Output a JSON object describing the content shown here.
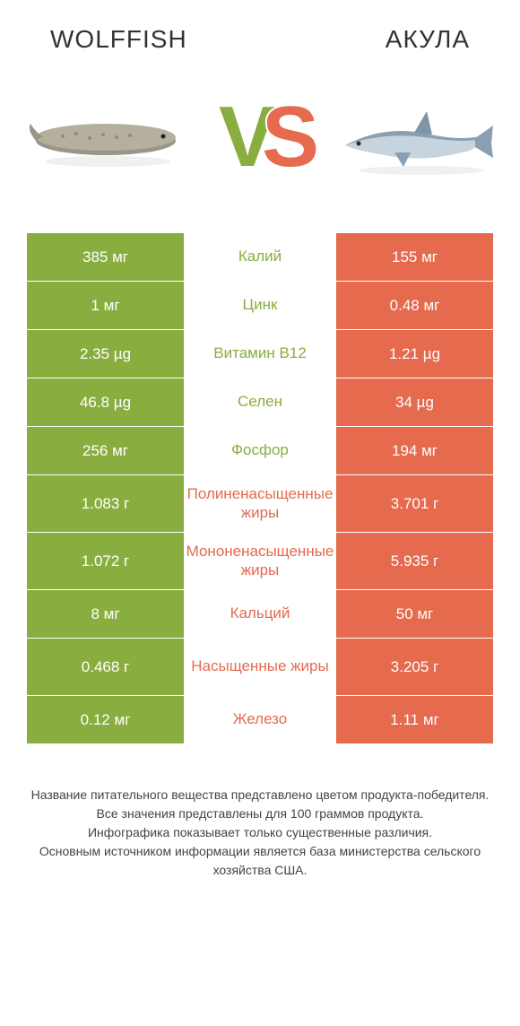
{
  "colors": {
    "green": "#8aad3f",
    "orange": "#e56a4e",
    "vs_v": "#8aad3f",
    "vs_s": "#e56a4e",
    "text_dark": "#333333",
    "footnote": "#444444"
  },
  "header": {
    "left_title": "WOLFFISH",
    "right_title": "АКУЛА"
  },
  "hero": {
    "left_alt": "wolffish",
    "right_alt": "shark",
    "vs": "VS"
  },
  "rows": [
    {
      "label": "Калий",
      "left": "385 мг",
      "right": "155 мг",
      "winner": "left",
      "tall": false
    },
    {
      "label": "Цинк",
      "left": "1 мг",
      "right": "0.48 мг",
      "winner": "left",
      "tall": false
    },
    {
      "label": "Витамин B12",
      "left": "2.35 µg",
      "right": "1.21 µg",
      "winner": "left",
      "tall": false
    },
    {
      "label": "Селен",
      "left": "46.8 µg",
      "right": "34 µg",
      "winner": "left",
      "tall": false
    },
    {
      "label": "Фосфор",
      "left": "256 мг",
      "right": "194 мг",
      "winner": "left",
      "tall": false
    },
    {
      "label": "Полиненасыщенные жиры",
      "left": "1.083 г",
      "right": "3.701 г",
      "winner": "right",
      "tall": true
    },
    {
      "label": "Мононенасыщенные жиры",
      "left": "1.072 г",
      "right": "5.935 г",
      "winner": "right",
      "tall": true
    },
    {
      "label": "Кальций",
      "left": "8 мг",
      "right": "50 мг",
      "winner": "right",
      "tall": false
    },
    {
      "label": "Насыщенные жиры",
      "left": "0.468 г",
      "right": "3.205 г",
      "winner": "right",
      "tall": true
    },
    {
      "label": "Железо",
      "left": "0.12 мг",
      "right": "1.11 мг",
      "winner": "right",
      "tall": false
    }
  ],
  "footnote": {
    "l1": "Название питательного вещества представлено цветом продукта-победителя.",
    "l2": "Все значения представлены для 100 граммов продукта.",
    "l3": "Инфографика показывает только существенные различия.",
    "l4": "Основным источником информации является база министерства сельского хозяйства США."
  }
}
